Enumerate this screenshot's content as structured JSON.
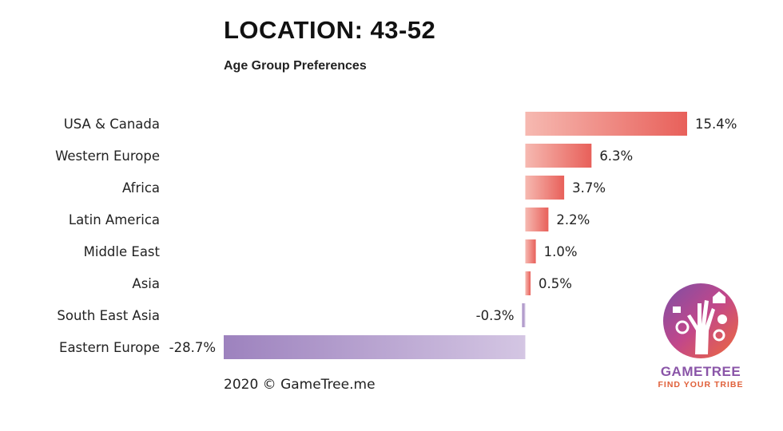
{
  "header": {
    "title": "LOCATION: 43-52",
    "subtitle": "Age Group Preferences"
  },
  "footer": {
    "copyright": "2020 © GameTree.me"
  },
  "logo": {
    "name": "GAMETREE",
    "tagline": "FIND YOUR TRIBE",
    "name_color": "#8a55a8",
    "tagline_color": "#e0603a"
  },
  "colors": {
    "positive_light": "#f6b9b1",
    "positive_dark": "#e8605a",
    "negative_light": "#d4c6e3",
    "negative_dark": "#9d82be"
  },
  "chart_data": {
    "type": "bar",
    "orientation": "horizontal",
    "categories": [
      "USA & Canada",
      "Western Europe",
      "Africa",
      "Latin America",
      "Middle East",
      "Asia",
      "South East Asia",
      "Eastern Europe"
    ],
    "values": [
      15.4,
      6.3,
      3.7,
      2.2,
      1.0,
      0.5,
      -0.3,
      -28.7
    ],
    "value_labels": [
      "15.4%",
      "6.3%",
      "3.7%",
      "2.2%",
      "1.0%",
      "0.5%",
      "-0.3%",
      "-28.7%"
    ],
    "title": "LOCATION: 43-52",
    "subtitle": "Age Group Preferences",
    "grid": false,
    "xlim": [
      -28.7,
      15.4
    ]
  }
}
